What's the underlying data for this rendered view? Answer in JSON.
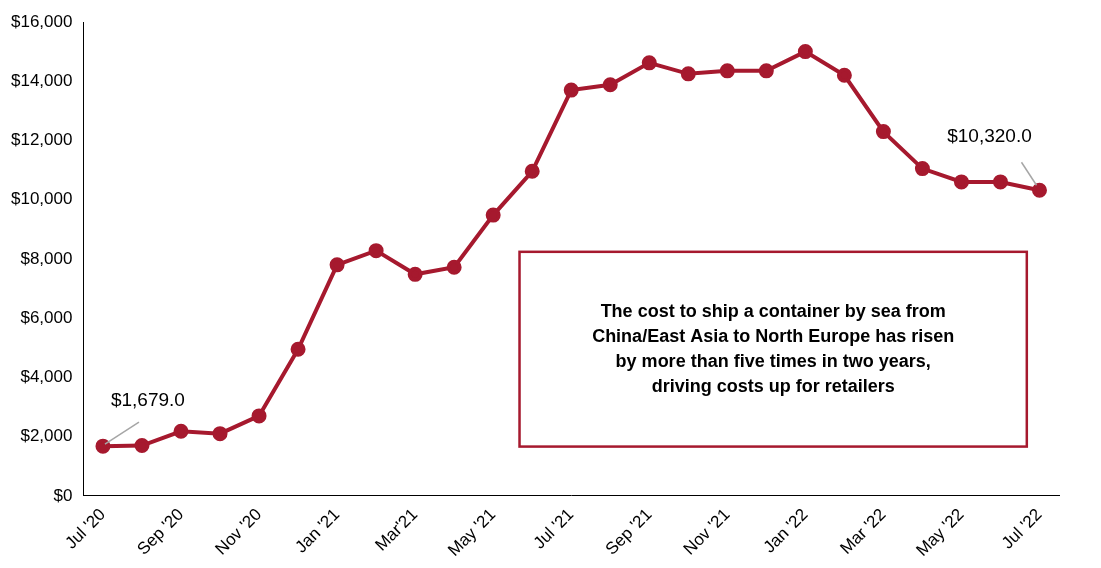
{
  "chart_data": {
    "type": "line",
    "categories": [
      "Jul '20",
      null,
      "Sep '20",
      null,
      "Nov '20",
      null,
      "Jan '21",
      null,
      "Mar'21",
      null,
      "May '21",
      null,
      "Jul '21",
      null,
      "Sep '21",
      null,
      "Nov '21",
      null,
      "Jan '22",
      null,
      "Mar '22",
      null,
      "May '22",
      null,
      "Jul '22"
    ],
    "values": [
      1679,
      1700,
      2180,
      2100,
      2700,
      4950,
      7800,
      8280,
      7480,
      7720,
      9480,
      10960,
      13700,
      13880,
      14620,
      14250,
      14350,
      14350,
      15000,
      14200,
      12300,
      11050,
      10600,
      10600,
      10320
    ],
    "color": "#a6192e",
    "marker": "circle",
    "line_style": "solid",
    "ylim": [
      0,
      16000
    ],
    "yticks": [
      {
        "value": 0,
        "label": "$0"
      },
      {
        "value": 2000,
        "label": "$2,000"
      },
      {
        "value": 4000,
        "label": "$4,000"
      },
      {
        "value": 6000,
        "label": "$6,000"
      },
      {
        "value": 8000,
        "label": "$8,000"
      },
      {
        "value": 10000,
        "label": "$10,000"
      },
      {
        "value": 12000,
        "label": "$12,000"
      },
      {
        "value": 14000,
        "label": "$14,000"
      },
      {
        "value": 16000,
        "label": "$16,000"
      }
    ],
    "grid": false,
    "annotations": [
      {
        "category": "Jul '20",
        "value": 1679,
        "label": "$1,679.0"
      },
      {
        "category": "Jul '22",
        "value": 10320,
        "label": "$10,320.0"
      },
      {
        "lines": [
          "The cost to ship a container by sea from",
          "China/East Asia to North Europe has risen",
          "by more than five times in two years,",
          "driving costs up for retailers"
        ]
      }
    ]
  }
}
